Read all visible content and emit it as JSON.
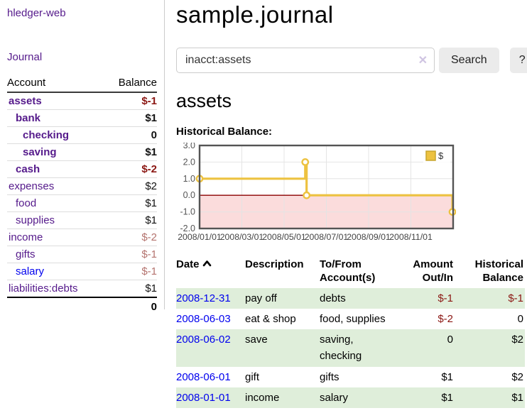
{
  "app": {
    "brand": "hledger-web",
    "nav_journal": "Journal"
  },
  "sidebar": {
    "header": {
      "account": "Account",
      "balance": "Balance"
    },
    "accounts": [
      {
        "name": "assets",
        "indent": 0,
        "balance": "$-1",
        "bold": true,
        "neg": "strong"
      },
      {
        "name": "bank",
        "indent": 1,
        "balance": "$1",
        "bold": true,
        "neg": "none"
      },
      {
        "name": "checking",
        "indent": 2,
        "balance": "0",
        "bold": true,
        "neg": "none"
      },
      {
        "name": "saving",
        "indent": 2,
        "balance": "$1",
        "bold": true,
        "neg": "none"
      },
      {
        "name": "cash",
        "indent": 1,
        "balance": "$-2",
        "bold": true,
        "neg": "strong"
      },
      {
        "name": "expenses",
        "indent": 0,
        "balance": "$2",
        "bold": false,
        "neg": "none"
      },
      {
        "name": "food",
        "indent": 1,
        "balance": "$1",
        "bold": false,
        "neg": "none"
      },
      {
        "name": "supplies",
        "indent": 1,
        "balance": "$1",
        "bold": false,
        "neg": "none"
      },
      {
        "name": "income",
        "indent": 0,
        "balance": "$-2",
        "bold": false,
        "neg": "dim"
      },
      {
        "name": "gifts",
        "indent": 1,
        "balance": "$-1",
        "bold": false,
        "neg": "dim"
      },
      {
        "name": "salary",
        "indent": 1,
        "balance": "$-1",
        "bold": false,
        "neg": "dim",
        "unvisited": true
      },
      {
        "name": "liabilities:debts",
        "indent": 0,
        "balance": "$1",
        "bold": false,
        "neg": "none"
      }
    ],
    "total": "0"
  },
  "header": {
    "title": "sample.journal"
  },
  "search": {
    "value": "inacct:assets",
    "clear_icon": "✕",
    "button_label": "Search",
    "help_label": "?"
  },
  "register": {
    "heading": "assets",
    "chart_label": "Historical Balance:",
    "table": {
      "headers": {
        "date": "Date",
        "description": "Description",
        "accounts": "To/From Account(s)",
        "amount": "Amount Out/In",
        "balance": "Historical Balance"
      },
      "rows": [
        {
          "date": "2008-12-31",
          "description": "pay off",
          "accounts": "debts",
          "amount": "$-1",
          "amount_neg": true,
          "balance": "$-1",
          "balance_neg": true,
          "shade": true
        },
        {
          "date": "2008-06-03",
          "description": "eat & shop",
          "accounts": "food, supplies",
          "amount": "$-2",
          "amount_neg": true,
          "balance": "0",
          "balance_neg": false,
          "shade": false
        },
        {
          "date": "2008-06-02",
          "description": "save",
          "accounts": "saving, checking",
          "amount": "0",
          "amount_neg": false,
          "balance": "$2",
          "balance_neg": false,
          "shade": true
        },
        {
          "date": "2008-06-01",
          "description": "gift",
          "accounts": "gifts",
          "amount": "$1",
          "amount_neg": false,
          "balance": "$2",
          "balance_neg": false,
          "shade": false
        },
        {
          "date": "2008-01-01",
          "description": "income",
          "accounts": "salary",
          "amount": "$1",
          "amount_neg": false,
          "balance": "$1",
          "balance_neg": false,
          "shade": true
        }
      ]
    }
  },
  "chart_data": {
    "type": "line",
    "title": "Historical Balance",
    "step": true,
    "series": [
      {
        "name": "$",
        "color": "#EDC240",
        "color_dark": "#C7A52E",
        "points": [
          [
            "2008-01-01",
            1
          ],
          [
            "2008-06-01",
            2
          ],
          [
            "2008-06-03",
            0
          ],
          [
            "2008-12-31",
            -1
          ]
        ]
      }
    ],
    "x_tick_labels": [
      "2008/01/01",
      "2008/03/01",
      "2008/05/01",
      "2008/07/01",
      "2008/09/01",
      "2008/11/01"
    ],
    "x_tick_months": [
      0,
      2,
      4,
      6,
      8,
      10
    ],
    "y_ticks": [
      3.0,
      2.0,
      1.0,
      0.0,
      -1.0,
      -2.0
    ],
    "ylim": [
      -2,
      3
    ],
    "months_span": 12,
    "grid": true,
    "legend_position": "top-right",
    "negative_region_color": "#FBDCDC",
    "zero_line_color": "#8B0000",
    "grid_color": "#E4E4E4",
    "border_color": "#545454",
    "tick_label_color": "#545454"
  }
}
